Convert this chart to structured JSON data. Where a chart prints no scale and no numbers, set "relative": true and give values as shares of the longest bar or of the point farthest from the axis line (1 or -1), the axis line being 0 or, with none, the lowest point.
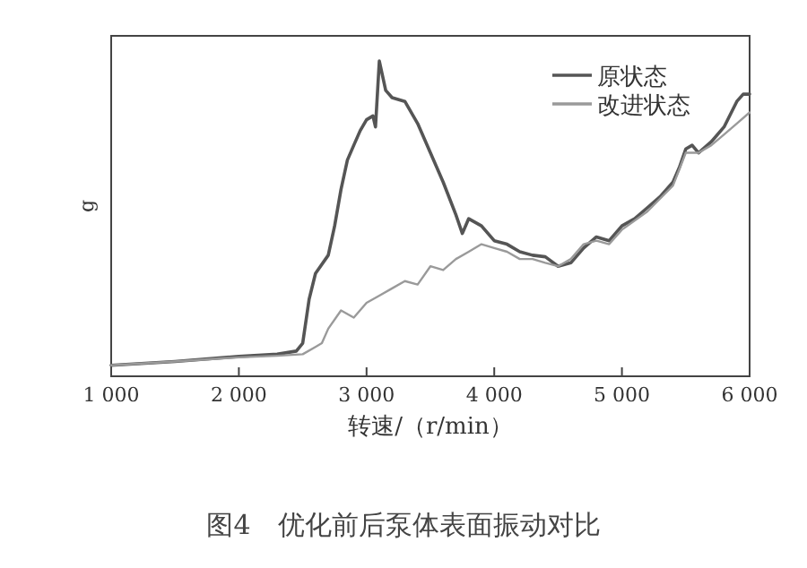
{
  "chart_data": {
    "type": "line",
    "title": "图4　优化前后泵体表面振动对比",
    "xlabel": "转速/（r/min）",
    "ylabel": "g",
    "relative": true,
    "xlim": [
      1000,
      6000
    ],
    "xticks": [
      {
        "value": 1000,
        "label": "1 000"
      },
      {
        "value": 2000,
        "label": "2 000"
      },
      {
        "value": 3000,
        "label": "3 000"
      },
      {
        "value": 4000,
        "label": "4 000"
      },
      {
        "value": 5000,
        "label": "5 000"
      },
      {
        "value": 6000,
        "label": "6 000"
      }
    ],
    "legend": "top right",
    "grid": false,
    "series": [
      {
        "name": "原状态",
        "color": "#555555",
        "x": [
          1000,
          1500,
          2000,
          2300,
          2450,
          2500,
          2550,
          2600,
          2700,
          2750,
          2800,
          2850,
          2900,
          2950,
          3000,
          3050,
          3070,
          3100,
          3150,
          3200,
          3300,
          3400,
          3500,
          3600,
          3700,
          3750,
          3800,
          3900,
          4000,
          4100,
          4200,
          4300,
          4400,
          4500,
          4600,
          4700,
          4800,
          4900,
          5000,
          5100,
          5200,
          5300,
          5400,
          5450,
          5500,
          5550,
          5600,
          5700,
          5800,
          5900,
          5950,
          6000
        ],
        "values": [
          0.035,
          0.047,
          0.063,
          0.07,
          0.08,
          0.105,
          0.244,
          0.326,
          0.384,
          0.477,
          0.593,
          0.686,
          0.733,
          0.779,
          0.814,
          0.826,
          0.791,
          1,
          0.907,
          0.884,
          0.872,
          0.802,
          0.709,
          0.616,
          0.512,
          0.453,
          0.5,
          0.477,
          0.43,
          0.419,
          0.395,
          0.384,
          0.379,
          0.349,
          0.36,
          0.407,
          0.442,
          0.43,
          0.477,
          0.5,
          0.535,
          0.57,
          0.616,
          0.663,
          0.721,
          0.733,
          0.709,
          0.744,
          0.791,
          0.872,
          0.895,
          0.895
        ]
      },
      {
        "name": "改进状态",
        "color": "#9a9a9a",
        "x": [
          1000,
          1500,
          2000,
          2300,
          2500,
          2600,
          2650,
          2700,
          2800,
          2900,
          3000,
          3100,
          3200,
          3300,
          3400,
          3500,
          3600,
          3700,
          3800,
          3900,
          4000,
          4100,
          4200,
          4300,
          4400,
          4500,
          4600,
          4700,
          4800,
          4900,
          5000,
          5200,
          5400,
          5500,
          5600,
          5700,
          5800,
          5900,
          6000
        ],
        "values": [
          0.035,
          0.047,
          0.06,
          0.065,
          0.07,
          0.093,
          0.105,
          0.151,
          0.209,
          0.186,
          0.233,
          0.256,
          0.279,
          0.302,
          0.291,
          0.349,
          0.337,
          0.372,
          0.395,
          0.419,
          0.407,
          0.395,
          0.372,
          0.372,
          0.36,
          0.349,
          0.372,
          0.419,
          0.43,
          0.419,
          0.465,
          0.523,
          0.605,
          0.709,
          0.709,
          0.733,
          0.767,
          0.802,
          0.837
        ]
      }
    ]
  }
}
